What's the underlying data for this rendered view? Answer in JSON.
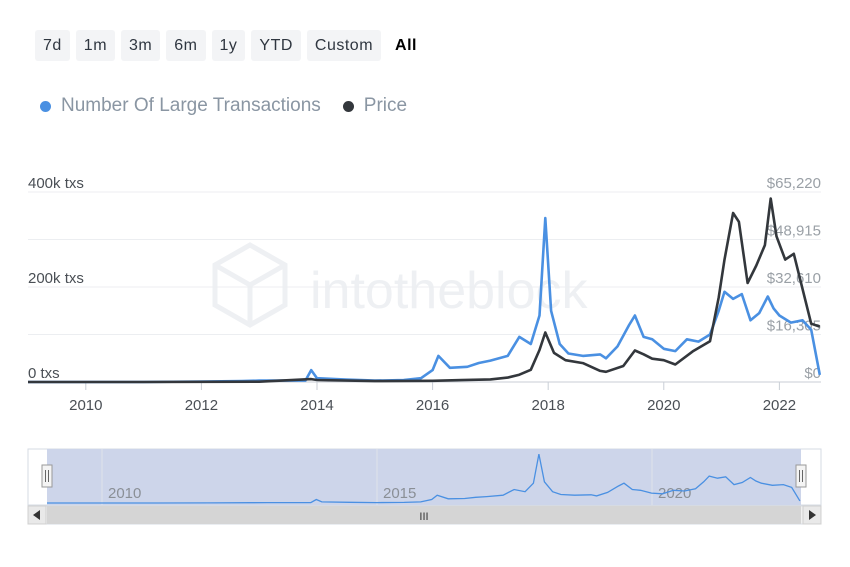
{
  "range_selector": {
    "buttons": [
      "7d",
      "1m",
      "3m",
      "6m",
      "1y",
      "YTD",
      "Custom",
      "All"
    ],
    "active": "All"
  },
  "legend": {
    "items": [
      {
        "label": "Number Of Large Transactions",
        "color": "#4a90e2"
      },
      {
        "label": "Price",
        "color": "#33373c"
      }
    ]
  },
  "watermark": "intotheblock",
  "navigator": {
    "labels": [
      "2010",
      "2015",
      "2020"
    ],
    "scroll_grip": "III"
  },
  "chart_data": {
    "type": "line",
    "x_range": [
      "2009-01",
      "2022-09"
    ],
    "x_ticks": [
      "2010",
      "2012",
      "2014",
      "2016",
      "2018",
      "2020",
      "2022"
    ],
    "y_left": {
      "ticks": [
        "0 txs",
        "200k txs",
        "400k txs"
      ],
      "range": [
        0,
        400000
      ]
    },
    "y_right": {
      "ticks": [
        "$0",
        "$16,305",
        "$32,610",
        "$48,915",
        "$65,220"
      ],
      "range": [
        0,
        65220
      ]
    },
    "grid": true,
    "legend_placement": "top-left",
    "series": [
      {
        "name": "Number Of Large Transactions",
        "axis": "left",
        "color": "#4a90e2",
        "x": [
          2009.0,
          2010.0,
          2011.0,
          2012.0,
          2012.7,
          2013.0,
          2013.8,
          2013.9,
          2014.0,
          2014.5,
          2015.0,
          2015.5,
          2015.8,
          2016.0,
          2016.1,
          2016.3,
          2016.6,
          2016.8,
          2017.0,
          2017.3,
          2017.5,
          2017.7,
          2017.85,
          2017.95,
          2018.05,
          2018.2,
          2018.35,
          2018.6,
          2018.9,
          2019.0,
          2019.2,
          2019.4,
          2019.5,
          2019.65,
          2019.8,
          2020.0,
          2020.2,
          2020.4,
          2020.6,
          2020.8,
          2020.95,
          2021.05,
          2021.2,
          2021.35,
          2021.5,
          2021.65,
          2021.8,
          2021.9,
          2022.0,
          2022.2,
          2022.4,
          2022.55,
          2022.7
        ],
        "values": [
          0,
          0,
          100,
          1000,
          2000,
          3000,
          3000,
          25000,
          8000,
          5000,
          3000,
          4000,
          8000,
          25000,
          55000,
          30000,
          32000,
          40000,
          45000,
          55000,
          95000,
          80000,
          140000,
          345000,
          150000,
          80000,
          60000,
          55000,
          58000,
          50000,
          75000,
          120000,
          140000,
          95000,
          90000,
          70000,
          65000,
          90000,
          85000,
          100000,
          150000,
          190000,
          175000,
          185000,
          130000,
          145000,
          180000,
          155000,
          140000,
          125000,
          130000,
          110000,
          15000
        ]
      },
      {
        "name": "Price",
        "axis": "right",
        "color": "#33373c",
        "x": [
          2009.0,
          2011.0,
          2013.0,
          2013.9,
          2014.0,
          2015.0,
          2016.0,
          2016.5,
          2017.0,
          2017.3,
          2017.5,
          2017.7,
          2017.85,
          2017.95,
          2018.1,
          2018.3,
          2018.6,
          2018.9,
          2019.0,
          2019.3,
          2019.5,
          2019.65,
          2019.8,
          2020.0,
          2020.2,
          2020.5,
          2020.8,
          2020.95,
          2021.05,
          2021.2,
          2021.3,
          2021.45,
          2021.6,
          2021.75,
          2021.85,
          2021.95,
          2022.1,
          2022.25,
          2022.45,
          2022.55,
          2022.7
        ],
        "values": [
          0,
          10,
          100,
          1000,
          700,
          300,
          400,
          650,
          900,
          1500,
          2500,
          4200,
          11000,
          17000,
          10000,
          7500,
          6500,
          3800,
          3500,
          5500,
          10800,
          9500,
          8000,
          7500,
          6000,
          10500,
          14000,
          29000,
          42000,
          58000,
          55000,
          34000,
          40000,
          47000,
          63000,
          50000,
          42000,
          44000,
          28000,
          20000,
          19000
        ]
      }
    ]
  }
}
